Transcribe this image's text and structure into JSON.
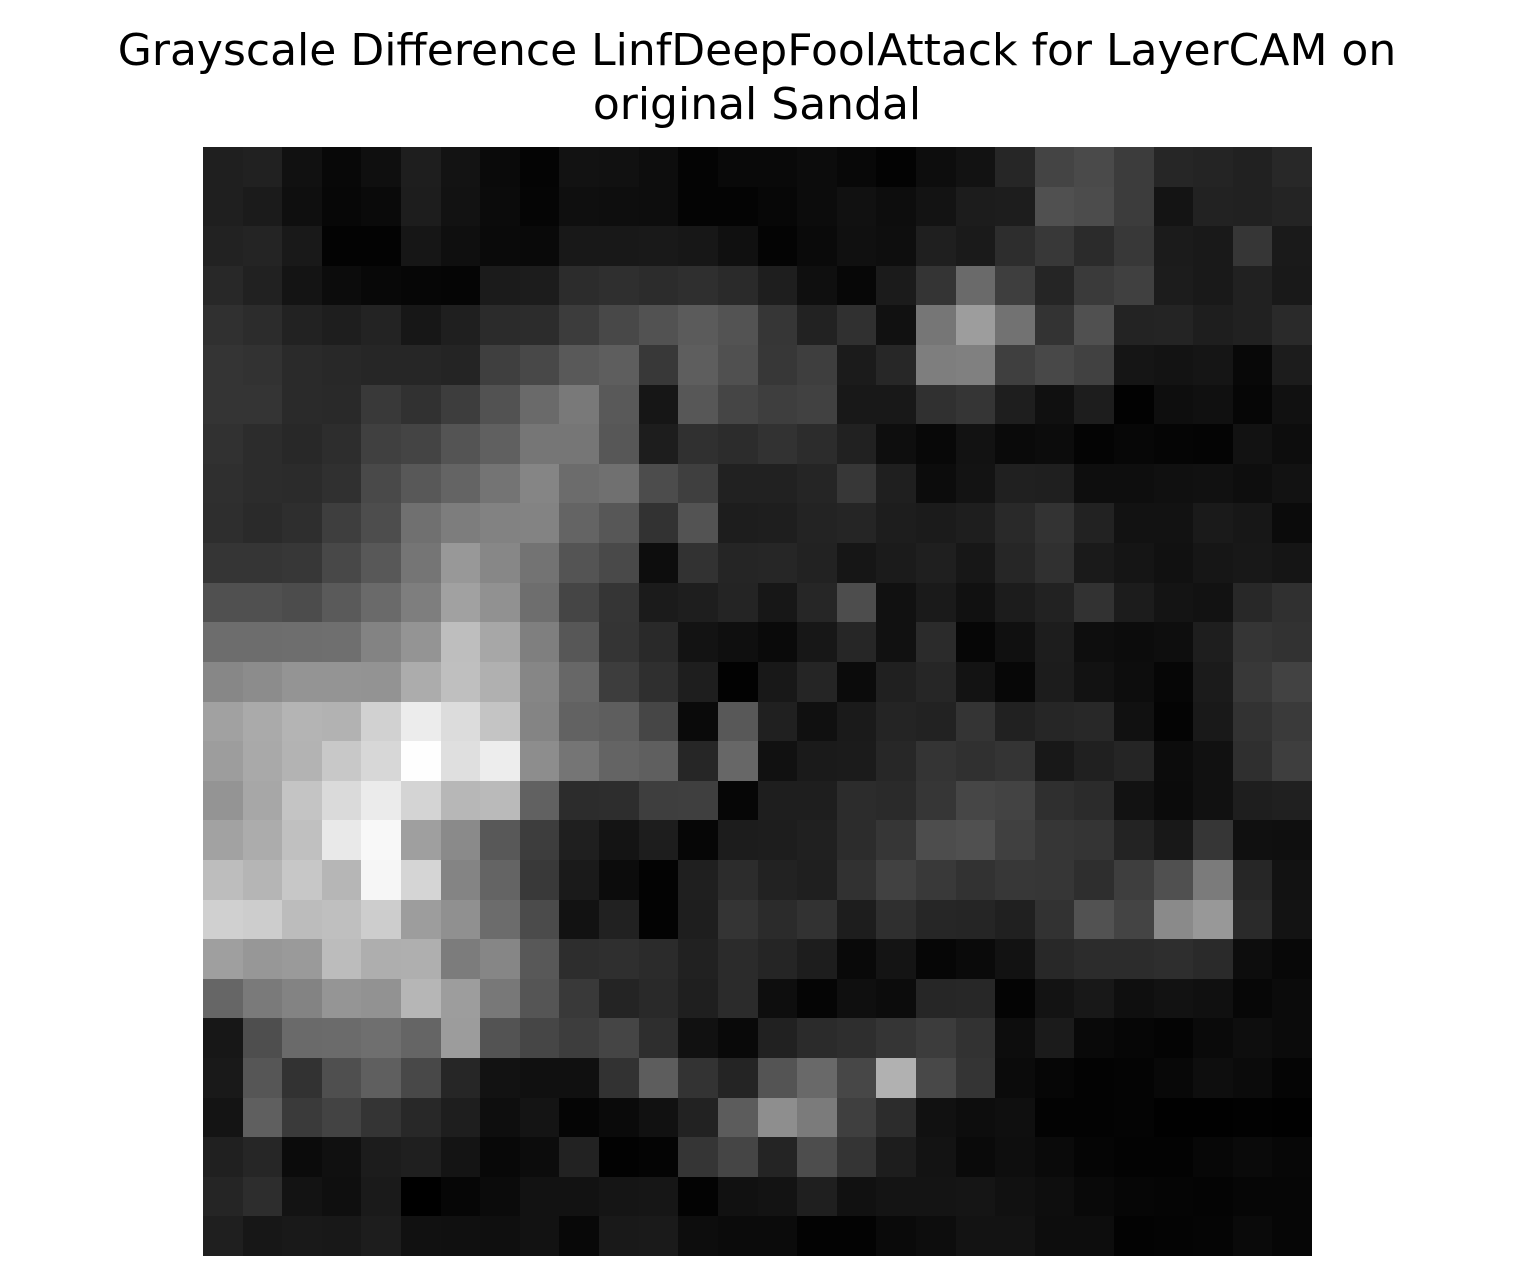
{
  "chart_data": {
    "type": "heatmap",
    "title_line1": "Grayscale Difference LinfDeepFoolAttack for LayerCAM on",
    "title_line2": "original Sandal",
    "colormap": "gray",
    "axes_visible": false,
    "rows": 28,
    "cols": 28,
    "values": [
      [
        31,
        33,
        17,
        8,
        15,
        30,
        19,
        10,
        4,
        18,
        17,
        13,
        4,
        9,
        9,
        12,
        8,
        3,
        13,
        18,
        38,
        68,
        74,
        60,
        38,
        36,
        33,
        40
      ],
      [
        31,
        27,
        15,
        7,
        10,
        29,
        18,
        11,
        5,
        15,
        14,
        13,
        4,
        4,
        7,
        12,
        17,
        13,
        19,
        28,
        29,
        80,
        76,
        60,
        20,
        34,
        33,
        36
      ],
      [
        34,
        36,
        25,
        3,
        3,
        22,
        15,
        10,
        9,
        24,
        24,
        25,
        23,
        16,
        4,
        10,
        16,
        14,
        31,
        26,
        45,
        56,
        43,
        56,
        27,
        25,
        54,
        26
      ],
      [
        40,
        33,
        20,
        12,
        8,
        6,
        5,
        27,
        28,
        44,
        47,
        44,
        47,
        42,
        30,
        15,
        7,
        27,
        52,
        106,
        62,
        37,
        58,
        64,
        28,
        25,
        33,
        25
      ],
      [
        48,
        44,
        34,
        30,
        35,
        23,
        31,
        43,
        44,
        60,
        72,
        82,
        91,
        83,
        54,
        34,
        48,
        17,
        118,
        157,
        114,
        51,
        80,
        35,
        36,
        30,
        33,
        42
      ],
      [
        52,
        50,
        42,
        40,
        38,
        38,
        36,
        63,
        72,
        89,
        94,
        56,
        94,
        80,
        55,
        62,
        27,
        39,
        126,
        128,
        63,
        72,
        65,
        21,
        19,
        21,
        8,
        28
      ],
      [
        52,
        52,
        42,
        41,
        57,
        49,
        61,
        82,
        106,
        121,
        89,
        22,
        87,
        69,
        62,
        65,
        24,
        24,
        48,
        53,
        30,
        16,
        29,
        2,
        14,
        16,
        6,
        17
      ],
      [
        49,
        44,
        40,
        45,
        64,
        68,
        84,
        96,
        118,
        118,
        87,
        29,
        48,
        44,
        50,
        44,
        33,
        14,
        8,
        18,
        10,
        12,
        4,
        7,
        5,
        4,
        18,
        13
      ],
      [
        47,
        44,
        43,
        48,
        73,
        88,
        100,
        116,
        133,
        108,
        112,
        76,
        63,
        33,
        33,
        37,
        55,
        31,
        12,
        19,
        32,
        31,
        14,
        14,
        16,
        17,
        14,
        18
      ],
      [
        46,
        42,
        46,
        62,
        77,
        112,
        125,
        130,
        131,
        100,
        87,
        50,
        83,
        29,
        30,
        35,
        37,
        29,
        27,
        30,
        41,
        51,
        34,
        18,
        18,
        26,
        23,
        11
      ],
      [
        53,
        53,
        55,
        72,
        88,
        117,
        152,
        135,
        115,
        84,
        73,
        13,
        50,
        37,
        38,
        34,
        22,
        27,
        31,
        23,
        38,
        48,
        26,
        21,
        17,
        22,
        24,
        21
      ],
      [
        80,
        80,
        76,
        90,
        106,
        126,
        161,
        145,
        110,
        69,
        53,
        27,
        30,
        36,
        23,
        38,
        77,
        17,
        26,
        17,
        28,
        34,
        50,
        28,
        20,
        18,
        40,
        48
      ],
      [
        109,
        109,
        110,
        111,
        131,
        148,
        190,
        167,
        127,
        87,
        52,
        41,
        19,
        15,
        10,
        23,
        38,
        17,
        43,
        6,
        16,
        29,
        14,
        12,
        14,
        30,
        53,
        50
      ],
      [
        135,
        140,
        148,
        148,
        147,
        172,
        191,
        176,
        134,
        103,
        61,
        47,
        30,
        2,
        24,
        37,
        11,
        32,
        38,
        19,
        7,
        28,
        18,
        13,
        6,
        27,
        56,
        66
      ],
      [
        161,
        170,
        180,
        178,
        209,
        236,
        220,
        196,
        132,
        98,
        94,
        70,
        10,
        88,
        32,
        16,
        26,
        36,
        34,
        52,
        33,
        38,
        40,
        17,
        4,
        25,
        50,
        58
      ],
      [
        157,
        169,
        179,
        200,
        215,
        254,
        223,
        237,
        141,
        117,
        100,
        95,
        38,
        103,
        17,
        26,
        27,
        39,
        52,
        48,
        52,
        24,
        32,
        37,
        12,
        17,
        47,
        62
      ],
      [
        148,
        167,
        196,
        218,
        235,
        212,
        183,
        186,
        97,
        44,
        45,
        62,
        63,
        6,
        30,
        30,
        44,
        42,
        54,
        70,
        67,
        47,
        43,
        18,
        11,
        17,
        30,
        32
      ],
      [
        162,
        172,
        192,
        233,
        248,
        159,
        138,
        88,
        61,
        31,
        20,
        29,
        6,
        28,
        29,
        32,
        44,
        54,
        77,
        80,
        64,
        54,
        52,
        35,
        24,
        54,
        16,
        15
      ],
      [
        189,
        181,
        199,
        182,
        246,
        213,
        132,
        100,
        57,
        26,
        12,
        3,
        31,
        44,
        34,
        31,
        49,
        65,
        57,
        50,
        55,
        54,
        46,
        62,
        80,
        123,
        38,
        18
      ],
      [
        208,
        205,
        188,
        191,
        205,
        157,
        144,
        108,
        75,
        18,
        33,
        3,
        30,
        52,
        43,
        50,
        29,
        47,
        38,
        37,
        32,
        50,
        82,
        68,
        138,
        152,
        42,
        19
      ],
      [
        159,
        151,
        154,
        188,
        174,
        175,
        124,
        134,
        88,
        45,
        47,
        43,
        33,
        43,
        37,
        29,
        9,
        20,
        6,
        10,
        18,
        40,
        44,
        44,
        46,
        42,
        13,
        8
      ],
      [
        102,
        122,
        131,
        149,
        146,
        182,
        157,
        120,
        85,
        57,
        36,
        41,
        31,
        43,
        14,
        5,
        15,
        12,
        38,
        39,
        4,
        19,
        24,
        15,
        18,
        16,
        7,
        11
      ],
      [
        23,
        78,
        106,
        107,
        111,
        101,
        156,
        83,
        70,
        61,
        69,
        46,
        17,
        9,
        33,
        43,
        46,
        53,
        60,
        50,
        13,
        27,
        9,
        6,
        4,
        10,
        14,
        11
      ],
      [
        25,
        86,
        50,
        79,
        95,
        72,
        38,
        18,
        16,
        16,
        50,
        93,
        51,
        36,
        84,
        105,
        71,
        177,
        72,
        52,
        11,
        6,
        3,
        4,
        8,
        14,
        11,
        5
      ],
      [
        20,
        95,
        58,
        67,
        52,
        40,
        30,
        14,
        20,
        5,
        10,
        17,
        34,
        92,
        142,
        123,
        63,
        44,
        17,
        13,
        15,
        3,
        3,
        4,
        1,
        1,
        2,
        1
      ],
      [
        32,
        38,
        11,
        16,
        28,
        31,
        20,
        8,
        12,
        34,
        2,
        4,
        53,
        69,
        36,
        77,
        52,
        29,
        19,
        10,
        14,
        10,
        5,
        3,
        3,
        7,
        10,
        7
      ],
      [
        37,
        45,
        19,
        15,
        26,
        0,
        6,
        11,
        18,
        18,
        21,
        22,
        3,
        17,
        19,
        31,
        17,
        20,
        20,
        21,
        17,
        14,
        9,
        6,
        5,
        4,
        6,
        6
      ],
      [
        31,
        23,
        25,
        24,
        29,
        17,
        16,
        15,
        18,
        8,
        25,
        26,
        13,
        11,
        11,
        3,
        3,
        10,
        13,
        19,
        19,
        13,
        13,
        3,
        4,
        5,
        10,
        6
      ]
    ]
  }
}
